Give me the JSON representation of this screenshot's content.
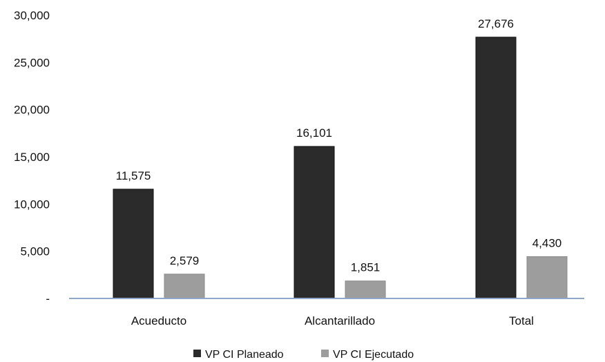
{
  "chart_data": {
    "type": "bar",
    "categories": [
      "Acueducto",
      "Alcantarillado",
      "Total"
    ],
    "series": [
      {
        "name": "VP CI Planeado",
        "values": [
          11575,
          16101,
          27676
        ],
        "labels": [
          "11,575",
          "16,101",
          "27,676"
        ],
        "color": "#2b2b2b"
      },
      {
        "name": "VP CI Ejecutado",
        "values": [
          2579,
          1851,
          4430
        ],
        "labels": [
          "2,579",
          "1,851",
          "4,430"
        ],
        "color": "#9d9d9d"
      }
    ],
    "yticks": [
      0,
      5000,
      10000,
      15000,
      20000,
      25000,
      30000
    ],
    "ytick_labels": [
      "-",
      "5,000",
      "10,000",
      "15,000",
      "20,000",
      "25,000",
      "30,000"
    ],
    "ylim": [
      0,
      30000
    ],
    "title": "",
    "xlabel": "",
    "ylabel": "",
    "grid": false,
    "legend_position": "bottom",
    "axis_color": "#8ea9c8"
  }
}
